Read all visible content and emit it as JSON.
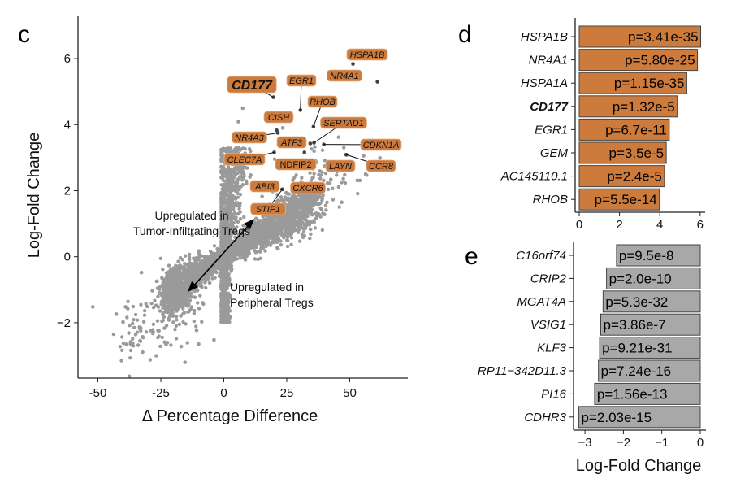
{
  "colors": {
    "up": "#cd7b3c",
    "down": "#a8a8a8",
    "points": "#9a9a9a",
    "axis": "#222222"
  },
  "chart_data": [
    {
      "panel": "c",
      "type": "scatter",
      "xlabel": "Δ Percentage Difference",
      "ylabel": "Log-Fold Change",
      "xlim": [
        -57,
        72
      ],
      "ylim": [
        -3.6,
        6.6
      ],
      "xticks": [
        "-50",
        "-25",
        "0",
        "25",
        "50"
      ],
      "yticks": [
        "−2",
        "0",
        "2",
        "4",
        "6"
      ],
      "grid": false,
      "annotations": {
        "tumor": [
          "Upregulated in",
          "Tumor-Infiltrating Tregs"
        ],
        "peripheral": [
          "Upregulated in",
          "Peripheral Tregs"
        ]
      },
      "labeled_points": [
        {
          "gene": "HSPA1B",
          "x": 51.3,
          "y": 5.84
        },
        {
          "gene": "NR4A1",
          "x": 61,
          "y": 5.3
        },
        {
          "gene": "CD177",
          "x": 19.7,
          "y": 4.83,
          "bold": true
        },
        {
          "gene": "EGR1",
          "x": 30.4,
          "y": 4.44
        },
        {
          "gene": "RHOB",
          "x": 35.6,
          "y": 3.94
        },
        {
          "gene": "CISH",
          "x": 21,
          "y": 3.83
        },
        {
          "gene": "SERTAD1",
          "x": 35.8,
          "y": 3.45
        },
        {
          "gene": "NR4A3",
          "x": 21.5,
          "y": 3.75
        },
        {
          "gene": "ATF3",
          "x": 34.3,
          "y": 3.43
        },
        {
          "gene": "CDKN1A",
          "x": 39.7,
          "y": 3.4
        },
        {
          "gene": "CLEC7A",
          "x": 20,
          "y": 3.16
        },
        {
          "gene": "NDFIP2",
          "x": 32,
          "y": 3.16
        },
        {
          "gene": "LAYN",
          "x": 48.6,
          "y": 3.09
        },
        {
          "gene": "CCR8",
          "x": 48.6,
          "y": 3.09
        },
        {
          "gene": "ABI3",
          "x": 23.2,
          "y": 2.04
        },
        {
          "gene": "CXCR6",
          "x": 23.2,
          "y": 2.04
        },
        {
          "gene": "STIP1",
          "x": 23.2,
          "y": 2.04
        }
      ],
      "outlier_points": [
        [
          -52,
          -1.52
        ],
        [
          -42.7,
          -1.74
        ],
        [
          -40,
          -1.98
        ],
        [
          -37.4,
          -2.08
        ],
        [
          -37,
          -2.58
        ],
        [
          -34,
          -2.68
        ],
        [
          -15.4,
          -3.2
        ],
        [
          -32.7,
          -0.48
        ],
        [
          -39,
          -1.52
        ],
        [
          -36,
          -1.51
        ],
        [
          -16.9,
          -2.72
        ],
        [
          -10,
          -2.65
        ],
        [
          -10.8,
          -2.23
        ],
        [
          -3.9,
          -2.52
        ],
        [
          46.8,
          1.65
        ],
        [
          46.8,
          2.25
        ],
        [
          54,
          2.31
        ],
        [
          56.7,
          2.47
        ],
        [
          34.4,
          0.83
        ],
        [
          40,
          1.28
        ],
        [
          62,
          2.99
        ],
        [
          42.5,
          2.34
        ],
        [
          7.5,
          4.5
        ],
        [
          56.3,
          2.5
        ],
        [
          53,
          2.31
        ],
        [
          5.8,
          4.09
        ],
        [
          23.4,
          3.9
        ]
      ]
    },
    {
      "panel": "d",
      "type": "bar",
      "orientation": "horizontal",
      "xlabel": "",
      "xlim": [
        0,
        6.3
      ],
      "xticks": [
        "0",
        "2",
        "4",
        "6"
      ],
      "categories": [
        "HSPA1B",
        "NR4A1",
        "HSPA1A",
        "CD177",
        "EGR1",
        "GEM",
        "AC145110.1",
        "RHOB"
      ],
      "values": [
        6.03,
        5.87,
        5.34,
        4.87,
        4.47,
        4.32,
        4.23,
        3.98
      ],
      "labels": [
        "p=3.41e-35",
        "p=5.80e-25",
        "p=1.15e-35",
        "p=1.32e-5",
        "p=6.7e-11",
        "p=3.5e-5",
        "p=2.4e-5",
        "p=5.5e-14"
      ],
      "bold_category": "CD177"
    },
    {
      "panel": "e",
      "type": "bar",
      "orientation": "horizontal",
      "xlabel": "Log-Fold Change",
      "xlim": [
        -3.35,
        0.2
      ],
      "xticks": [
        "−3",
        "−2",
        "−1",
        "0"
      ],
      "categories": [
        "C16orf74",
        "CRIP2",
        "MGAT4A",
        "VSIG1",
        "KLF3",
        "RP11−342D11.3",
        "PI16",
        "CDHR3"
      ],
      "values": [
        -2.18,
        -2.44,
        -2.53,
        -2.59,
        -2.62,
        -2.65,
        -2.75,
        -3.16
      ],
      "labels": [
        "p=9.5e-8",
        "p=2.0e-10",
        "p=5.3e-32",
        "p=3.86e-7",
        "p=9.21e-31",
        "p=7.24e-16",
        "p=1.56e-13",
        "p=2.03e-15"
      ]
    }
  ]
}
